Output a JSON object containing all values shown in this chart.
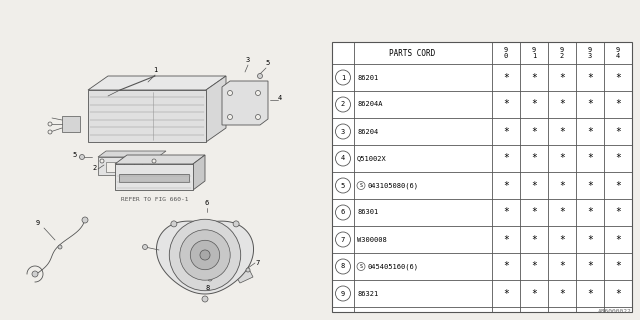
{
  "bg_color": "#f0eeea",
  "text_color": "#000000",
  "line_color": "#555555",
  "watermark": "A86000022",
  "refer_text": "REFER TO FIG 660-1",
  "parts": [
    {
      "num": "1",
      "code": "86201",
      "vals": [
        "*",
        "*",
        "*",
        "*",
        "*"
      ],
      "circled": false
    },
    {
      "num": "2",
      "code": "86204A",
      "vals": [
        "*",
        "*",
        "*",
        "*",
        "*"
      ],
      "circled": false
    },
    {
      "num": "3",
      "code": "86204",
      "vals": [
        "*",
        "*",
        "*",
        "*",
        "*"
      ],
      "circled": false
    },
    {
      "num": "4",
      "code": "Q51002X",
      "vals": [
        "*",
        "*",
        "*",
        "*",
        "*"
      ],
      "circled": false
    },
    {
      "num": "5",
      "code": "043105080(6)",
      "vals": [
        "*",
        "*",
        "*",
        "*",
        "*"
      ],
      "circled": true
    },
    {
      "num": "6",
      "code": "86301",
      "vals": [
        "*",
        "*",
        "*",
        "*",
        "*"
      ],
      "circled": false
    },
    {
      "num": "7",
      "code": "W300008",
      "vals": [
        "*",
        "*",
        "*",
        "*",
        "*"
      ],
      "circled": false
    },
    {
      "num": "8",
      "code": "045405160(6)",
      "vals": [
        "*",
        "*",
        "*",
        "*",
        "*"
      ],
      "circled": true
    },
    {
      "num": "9",
      "code": "86321",
      "vals": [
        "*",
        "*",
        "*",
        "*",
        "*"
      ],
      "circled": false
    }
  ],
  "year_cols": [
    "9\n0",
    "9\n1",
    "9\n2",
    "9\n3",
    "9\n4"
  ]
}
